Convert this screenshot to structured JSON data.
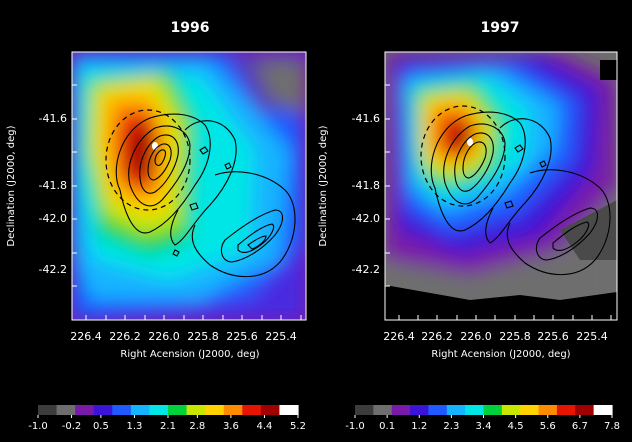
{
  "chart_data": [
    {
      "type": "heatmap",
      "title": "1996",
      "xlabel": "Right Acension (J2000, deg)",
      "ylabel": "Declination (J2000, deg)",
      "xlim": [
        226.5,
        225.3
      ],
      "ylim": [
        -42.4,
        -41.4
      ],
      "xticks": [
        "226.4",
        "226.2",
        "226.0",
        "225.8",
        "225.6",
        "225.4"
      ],
      "yticks": [
        "-41.6",
        "-41.8",
        "-42.0",
        "-42.2"
      ],
      "colorbar_labels": [
        "-1.0",
        "-0.2",
        "0.5",
        "1.3",
        "2.1",
        "2.8",
        "3.6",
        "4.4",
        "5.2"
      ],
      "colorbar_range": [
        -1.0,
        5.2
      ]
    },
    {
      "type": "heatmap",
      "title": "1997",
      "xlabel": "Right Acension (J2000, deg)",
      "ylabel": "Declination (J2000, deg)",
      "xlim": [
        226.5,
        225.3
      ],
      "ylim": [
        -42.4,
        -41.4
      ],
      "xticks": [
        "226.4",
        "226.2",
        "226.0",
        "225.8",
        "225.6",
        "225.4"
      ],
      "yticks": [
        "-41.6",
        "-41.8",
        "-42.0",
        "-42.2"
      ],
      "colorbar_labels": [
        "-1.0",
        "0.1",
        "1.2",
        "2.3",
        "3.4",
        "4.5",
        "5.6",
        "6.7",
        "7.8"
      ],
      "colorbar_range": [
        -1.0,
        7.8
      ]
    }
  ],
  "colormap": [
    "#3c3c3c",
    "#6e6e6e",
    "#7a1aa8",
    "#3c14d8",
    "#1e5aff",
    "#14b4ff",
    "#00e6e6",
    "#00d23c",
    "#c8e600",
    "#ffd200",
    "#ff8c00",
    "#e61400",
    "#a00000",
    "#ffffff"
  ]
}
